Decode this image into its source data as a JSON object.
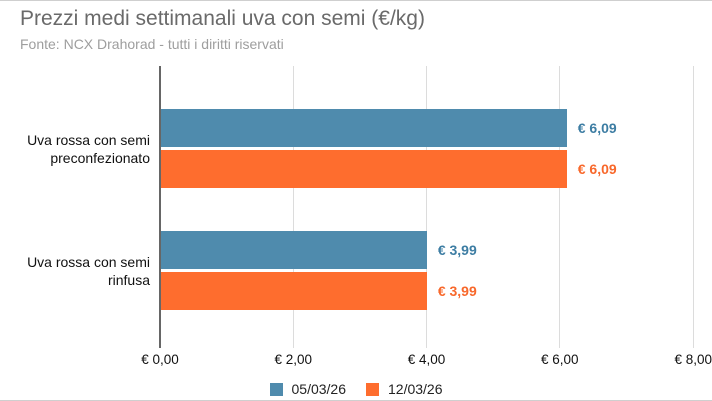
{
  "title": "Prezzi medi settimanali uva con semi (€/kg)",
  "subtitle": "Fonte: NCX Drahorad - tutti i diritti riservati",
  "colors": {
    "series_1": "#4f8bad",
    "series_2": "#fe6d2e",
    "axis_line": "#666666",
    "gridline": "#dcdcdc",
    "title_text": "#6a6a6a",
    "subtitle_text": "#9e9e9e",
    "tick_text": "#111111",
    "category_text": "#111111",
    "legend_text": "#222222"
  },
  "chart_data": {
    "type": "bar",
    "orientation": "horizontal",
    "title": "Prezzi medi settimanali uva con semi (€/kg)",
    "subtitle": "Fonte: NCX Drahorad - tutti i diritti riservati",
    "categories": [
      {
        "label": "Uva rossa con semi preconfezionato",
        "lines": [
          "Uva rossa con semi",
          "preconfezionato"
        ]
      },
      {
        "label": "Uva rossa con semi rinfusa",
        "lines": [
          "Uva rossa con semi",
          "rinfusa"
        ]
      }
    ],
    "series": [
      {
        "name": "05/03/26",
        "color": "#4f8bad",
        "label_color": "#3d7da3",
        "values": [
          6.09,
          3.99
        ],
        "value_labels": [
          "€ 6,09",
          "€ 3,99"
        ]
      },
      {
        "name": "12/03/26",
        "color": "#fe6d2e",
        "label_color": "#f8682b",
        "values": [
          6.09,
          3.99
        ],
        "value_labels": [
          "€ 6,09",
          "€ 3,99"
        ]
      }
    ],
    "xlim": [
      0,
      8
    ],
    "x_ticks": [
      {
        "value": 0,
        "label": "€ 0,00"
      },
      {
        "value": 2,
        "label": "€ 2,00"
      },
      {
        "value": 4,
        "label": "€ 4,00"
      },
      {
        "value": 6,
        "label": "€ 6,00"
      },
      {
        "value": 8,
        "label": "€ 8,00"
      }
    ],
    "grid": true,
    "legend_position": "bottom",
    "legend": [
      "05/03/26",
      "12/03/26"
    ]
  }
}
